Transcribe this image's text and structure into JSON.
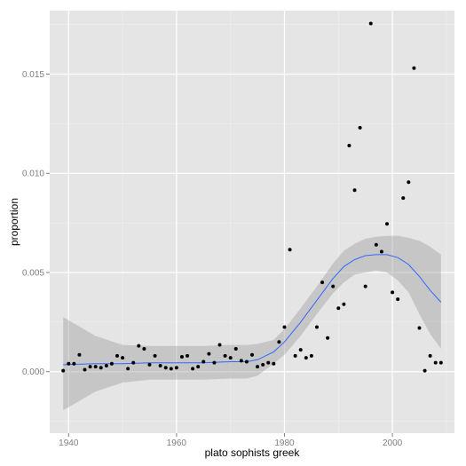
{
  "chart_data": {
    "type": "scatter",
    "xlabel": "plato sophists greek",
    "ylabel": "proportion",
    "xlim": [
      1936.5,
      2011.5
    ],
    "ylim": [
      -0.0031,
      0.0182
    ],
    "x_ticks": [
      1940,
      1960,
      1980,
      2000
    ],
    "x_tick_labels": [
      "1940",
      "1960",
      "1980",
      "2000"
    ],
    "y_ticks": [
      0,
      0.005,
      0.01,
      0.015
    ],
    "y_tick_labels": [
      "0.000",
      "0.005",
      "0.010",
      "0.015"
    ],
    "grid": true,
    "legend": "none",
    "colors": {
      "panel": "#e5e5e5",
      "grid_major": "#ffffff",
      "grid_minor": "#f0f0f0",
      "points": "#000000",
      "smooth_line": "#3366ff",
      "ribbon": "#999999",
      "tick_text": "#7f7f7f",
      "axis_text": "#000000"
    },
    "points": [
      {
        "x": 1939,
        "y": 5e-05
      },
      {
        "x": 1940,
        "y": 0.0004
      },
      {
        "x": 1941,
        "y": 0.0004
      },
      {
        "x": 1942,
        "y": 0.00085
      },
      {
        "x": 1943,
        "y": 0.0001
      },
      {
        "x": 1944,
        "y": 0.00025
      },
      {
        "x": 1945,
        "y": 0.00025
      },
      {
        "x": 1946,
        "y": 0.0002
      },
      {
        "x": 1947,
        "y": 0.0003
      },
      {
        "x": 1948,
        "y": 0.0004
      },
      {
        "x": 1949,
        "y": 0.0008
      },
      {
        "x": 1950,
        "y": 0.0007
      },
      {
        "x": 1951,
        "y": 0.00015
      },
      {
        "x": 1952,
        "y": 0.00045
      },
      {
        "x": 1953,
        "y": 0.0013
      },
      {
        "x": 1954,
        "y": 0.00115
      },
      {
        "x": 1955,
        "y": 0.00035
      },
      {
        "x": 1956,
        "y": 0.0008
      },
      {
        "x": 1957,
        "y": 0.0003
      },
      {
        "x": 1958,
        "y": 0.0002
      },
      {
        "x": 1959,
        "y": 0.00015
      },
      {
        "x": 1960,
        "y": 0.0002
      },
      {
        "x": 1961,
        "y": 0.00075
      },
      {
        "x": 1962,
        "y": 0.0008
      },
      {
        "x": 1963,
        "y": 0.00015
      },
      {
        "x": 1964,
        "y": 0.00025
      },
      {
        "x": 1965,
        "y": 0.0005
      },
      {
        "x": 1966,
        "y": 0.0009
      },
      {
        "x": 1967,
        "y": 0.00045
      },
      {
        "x": 1968,
        "y": 0.00135
      },
      {
        "x": 1969,
        "y": 0.0008
      },
      {
        "x": 1970,
        "y": 0.0007
      },
      {
        "x": 1971,
        "y": 0.00115
      },
      {
        "x": 1972,
        "y": 0.00055
      },
      {
        "x": 1973,
        "y": 0.0005
      },
      {
        "x": 1974,
        "y": 0.00085
      },
      {
        "x": 1975,
        "y": 0.00025
      },
      {
        "x": 1976,
        "y": 0.00035
      },
      {
        "x": 1977,
        "y": 0.00045
      },
      {
        "x": 1978,
        "y": 0.0004
      },
      {
        "x": 1979,
        "y": 0.0015
      },
      {
        "x": 1980,
        "y": 0.00225
      },
      {
        "x": 1981,
        "y": 0.00615
      },
      {
        "x": 1982,
        "y": 0.0008
      },
      {
        "x": 1983,
        "y": 0.0011
      },
      {
        "x": 1984,
        "y": 0.0007
      },
      {
        "x": 1985,
        "y": 0.0008
      },
      {
        "x": 1986,
        "y": 0.00225
      },
      {
        "x": 1987,
        "y": 0.0045
      },
      {
        "x": 1988,
        "y": 0.0017
      },
      {
        "x": 1989,
        "y": 0.0043
      },
      {
        "x": 1990,
        "y": 0.0032
      },
      {
        "x": 1991,
        "y": 0.0034
      },
      {
        "x": 1992,
        "y": 0.0114
      },
      {
        "x": 1993,
        "y": 0.00915
      },
      {
        "x": 1994,
        "y": 0.0123
      },
      {
        "x": 1995,
        "y": 0.0043
      },
      {
        "x": 1996,
        "y": 0.01755
      },
      {
        "x": 1997,
        "y": 0.0064
      },
      {
        "x": 1998,
        "y": 0.00605
      },
      {
        "x": 1999,
        "y": 0.00745
      },
      {
        "x": 2000,
        "y": 0.004
      },
      {
        "x": 2001,
        "y": 0.00365
      },
      {
        "x": 2002,
        "y": 0.00875
      },
      {
        "x": 2003,
        "y": 0.00955
      },
      {
        "x": 2004,
        "y": 0.0153
      },
      {
        "x": 2005,
        "y": 0.0022
      },
      {
        "x": 2006,
        "y": 5e-05
      },
      {
        "x": 2007,
        "y": 0.0008
      },
      {
        "x": 2008,
        "y": 0.00045
      },
      {
        "x": 2009,
        "y": 0.00045
      }
    ],
    "smooth": {
      "x": [
        1939,
        1945,
        1950,
        1955,
        1960,
        1965,
        1970,
        1973,
        1975,
        1978,
        1980,
        1983,
        1986,
        1989,
        1991,
        1993,
        1995,
        1997,
        1999,
        2001,
        2003,
        2005,
        2007,
        2009
      ],
      "y": [
        0.00035,
        0.0004,
        0.0004,
        0.00045,
        0.00045,
        0.00045,
        0.0005,
        0.0005,
        0.0006,
        0.001,
        0.0015,
        0.0025,
        0.0036,
        0.0047,
        0.0053,
        0.00565,
        0.00585,
        0.0059,
        0.0059,
        0.00575,
        0.0054,
        0.0048,
        0.0041,
        0.0035
      ],
      "lo": [
        -0.00195,
        -0.001,
        -0.00055,
        -0.0004,
        -0.0004,
        -0.0004,
        -0.00035,
        -0.00035,
        -0.0002,
        0.0004,
        0.00085,
        0.0018,
        0.0029,
        0.00395,
        0.0045,
        0.0049,
        0.005,
        0.0051,
        0.005,
        0.0046,
        0.004,
        0.0029,
        0.0019,
        0.00115
      ],
      "hi": [
        0.00275,
        0.0018,
        0.00135,
        0.0013,
        0.0013,
        0.0013,
        0.00135,
        0.00135,
        0.0014,
        0.0016,
        0.00215,
        0.0032,
        0.0043,
        0.00545,
        0.0061,
        0.00645,
        0.0067,
        0.0068,
        0.00685,
        0.00685,
        0.00675,
        0.0066,
        0.0063,
        0.0059
      ]
    }
  }
}
